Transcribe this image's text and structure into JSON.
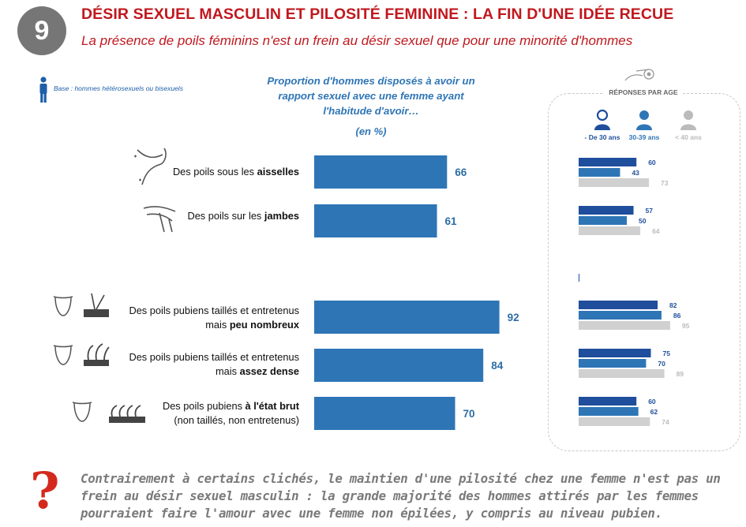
{
  "header": {
    "number": "9",
    "title": "DÉSIR SEXUEL MASCULIN ET PILOSITÉ FEMININE : LA FIN D'UNE IDÉE RECUE",
    "subtitle": "La présence de poils féminins n'est un frein au désir sexuel que pour une minorité d'hommes"
  },
  "base_note": "Base : hommes hétérosexuels ou bisexuels",
  "chart_title_lines": [
    "Proportion d'hommes disposés à avoir un",
    "rapport sexuel avec une femme ayant",
    "l'habitude d'avoir…"
  ],
  "unit_label": "(en %)",
  "age_panel": {
    "title": "RÉPONSES PAR AGE",
    "groups": [
      "- De 30 ans",
      "30-39 ans",
      "< 40 ans"
    ]
  },
  "colors": {
    "accent": "#c0181e",
    "main_bar": "#2e75b6",
    "age_dark": "#1f4e9c",
    "age_mid": "#2e75b6",
    "age_light": "#d0d0d0"
  },
  "items": [
    {
      "label_plain": "Des poils sous les ",
      "label_bold": "aisselles",
      "label_line2": ""
    },
    {
      "label_plain": "Des poils sur les ",
      "label_bold": "jambes",
      "label_line2": ""
    },
    {
      "label_plain": "Des poils pubiens taillés et entretenus",
      "label_line2_plain": "mais ",
      "label_bold": "peu nombreux"
    },
    {
      "label_plain": "Des poils pubiens taillés et entretenus",
      "label_line2_plain": "mais ",
      "label_bold": "assez dense"
    },
    {
      "label_plain": "Des poils pubiens ",
      "label_bold": "à l'état brut",
      "label_line2": "(non taillés, non entretenus)"
    }
  ],
  "chart_data": [
    {
      "type": "bar",
      "title": "Proportion d'hommes disposés à avoir un rapport sexuel avec une femme ayant l'habitude d'avoir…",
      "unit": "(en %)",
      "categories": [
        "Des poils sous les aisselles",
        "Des poils sur les jambes",
        "Des poils pubiens taillés et entretenus mais peu nombreux",
        "Des poils pubiens taillés et entretenus mais assez dense",
        "Des poils pubiens à l'état brut (non taillés, non entretenus)"
      ],
      "values": [
        66,
        61,
        92,
        84,
        70
      ],
      "xlim": [
        0,
        100
      ]
    },
    {
      "type": "bar",
      "title": "RÉPONSES PAR AGE",
      "categories": [
        "Des poils sous les aisselles",
        "Des poils sur les jambes",
        "Des poils pubiens taillés et entretenus mais peu nombreux",
        "Des poils pubiens taillés et entretenus mais assez dense",
        "Des poils pubiens à l'état brut (non taillés, non entretenus)"
      ],
      "series": [
        {
          "name": "- De 30 ans",
          "values": [
            60,
            57,
            82,
            75,
            60
          ]
        },
        {
          "name": "30-39 ans",
          "values": [
            43,
            50,
            86,
            70,
            62
          ]
        },
        {
          "name": "< 40 ans",
          "values": [
            73,
            64,
            95,
            89,
            74
          ]
        }
      ],
      "xlim": [
        0,
        100
      ]
    }
  ],
  "footer_lines": [
    "Contrairement à certains clichés, le maintien d'une pilosité chez une femme n'est pas un",
    "frein au désir sexuel masculin : la grande majorité des hommes attirés par les femmes",
    "pourraient faire l'amour avec une femme non épilées, y compris au niveau pubien."
  ]
}
